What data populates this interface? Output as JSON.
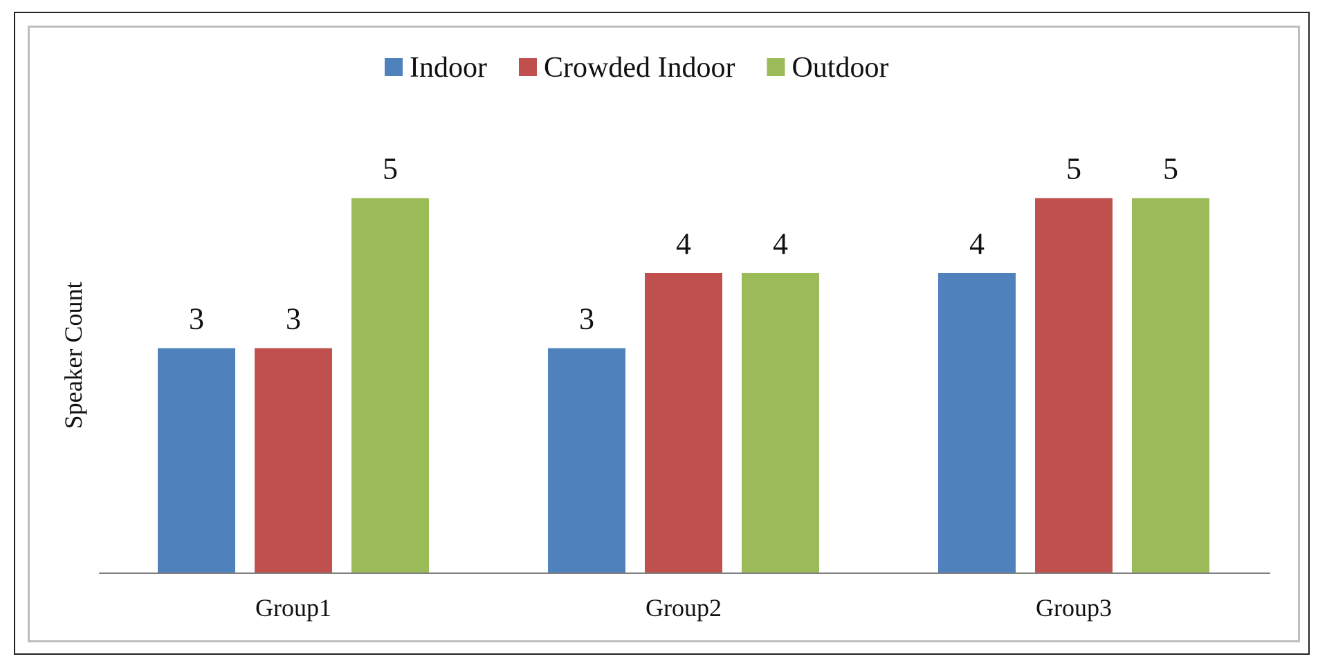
{
  "chart_data": {
    "type": "bar",
    "title": "",
    "xlabel": "",
    "ylabel": "Speaker Count",
    "categories": [
      "Group1",
      "Group2",
      "Group3"
    ],
    "series": [
      {
        "name": "Indoor",
        "color": "#4F81BD",
        "values": [
          3,
          3,
          4
        ]
      },
      {
        "name": "Crowded Indoor",
        "color": "#C0504D",
        "values": [
          3,
          4,
          5
        ]
      },
      {
        "name": "Outdoor",
        "color": "#9BBB59",
        "values": [
          5,
          4,
          5
        ]
      }
    ],
    "ylim": [
      0,
      6
    ],
    "grid": false,
    "legend_position": "top-center",
    "data_labels": true
  }
}
